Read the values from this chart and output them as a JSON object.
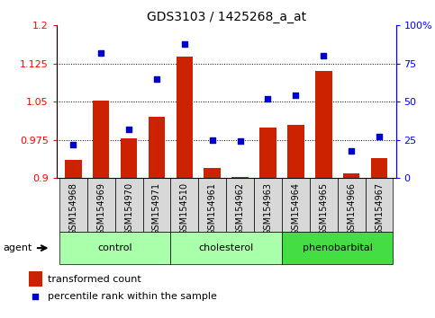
{
  "title": "GDS3103 / 1425268_a_at",
  "samples": [
    "GSM154968",
    "GSM154969",
    "GSM154970",
    "GSM154971",
    "GSM154510",
    "GSM154961",
    "GSM154962",
    "GSM154963",
    "GSM154964",
    "GSM154965",
    "GSM154966",
    "GSM154967"
  ],
  "transformed_count": [
    0.935,
    1.052,
    0.978,
    1.02,
    1.138,
    0.92,
    0.902,
    1.0,
    1.005,
    1.11,
    0.91,
    0.94
  ],
  "percentile_rank": [
    22,
    82,
    32,
    65,
    88,
    25,
    24,
    52,
    54,
    80,
    18,
    27
  ],
  "groups": [
    {
      "name": "control",
      "start": 0,
      "end": 3,
      "color": "#aaffaa"
    },
    {
      "name": "cholesterol",
      "start": 4,
      "end": 7,
      "color": "#aaffaa"
    },
    {
      "name": "phenobarbital",
      "start": 8,
      "end": 11,
      "color": "#44dd44"
    }
  ],
  "ylim_left": [
    0.9,
    1.2
  ],
  "ylim_right": [
    0,
    100
  ],
  "yticks_left": [
    0.9,
    0.975,
    1.05,
    1.125,
    1.2
  ],
  "ytick_labels_left": [
    "0.9",
    "0.975",
    "1.05",
    "1.125",
    "1.2"
  ],
  "yticks_right": [
    0,
    25,
    50,
    75,
    100
  ],
  "ytick_labels_right": [
    "0",
    "25",
    "50",
    "75",
    "100%"
  ],
  "bar_color": "#cc2200",
  "dot_color": "#0000cc",
  "sample_box_color": "#d8d8d8",
  "agent_label": "agent",
  "legend_bar": "transformed count",
  "legend_dot": "percentile rank within the sample"
}
